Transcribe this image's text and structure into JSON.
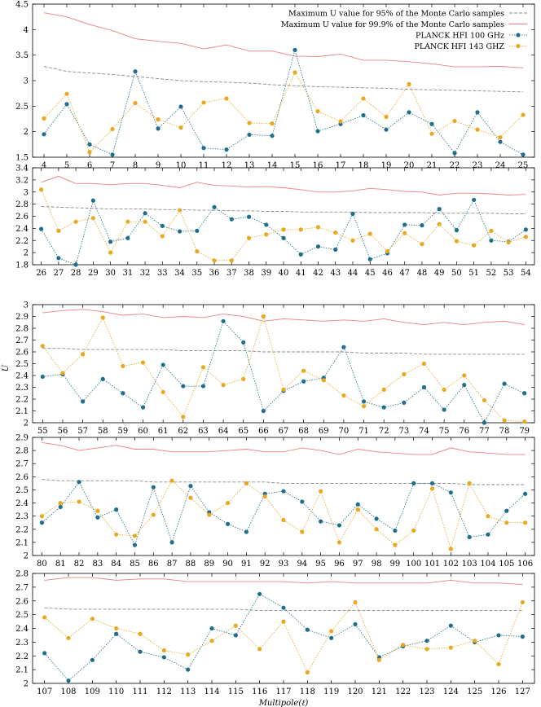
{
  "figure": {
    "ylabel": "U",
    "xlabel": "Multipole(ℓ)",
    "legend": {
      "placement": "top-right of first panel",
      "entries": [
        {
          "label": "Maximum U value for 95% of the Monte Carlo samples",
          "style": "dashed",
          "color": "#8a8a8a"
        },
        {
          "label": "Maximum U value for 99.9% of the Monte Carlo samples",
          "style": "line",
          "color": "#f08080"
        },
        {
          "label": "PLANCK HFI 100 GHz",
          "style": "dotted-marker",
          "color": "#1f6e8c"
        },
        {
          "label": "PLANCK HFI 143 GHZ",
          "style": "dotted-marker",
          "color": "#e9a820"
        }
      ]
    }
  },
  "chart_data": [
    {
      "type": "line",
      "x": [
        4,
        5,
        6,
        7,
        8,
        9,
        10,
        11,
        12,
        13,
        14,
        15,
        16,
        17,
        18,
        19,
        20,
        21,
        22,
        23,
        24,
        25
      ],
      "ylim": [
        1.5,
        4.5
      ],
      "yticks": [
        1.5,
        2,
        2.5,
        3,
        3.5,
        4,
        4.5
      ],
      "series": [
        {
          "name": "Maximum U value for 95% of the Monte Carlo samples",
          "values": [
            3.28,
            3.18,
            3.15,
            3.12,
            3.08,
            3.04,
            3.0,
            2.98,
            2.97,
            2.95,
            2.92,
            2.9,
            2.88,
            2.87,
            2.86,
            2.85,
            2.83,
            2.82,
            2.81,
            2.8,
            2.79,
            2.78
          ]
        },
        {
          "name": "Maximum U value for 99.9% of the Monte Carlo samples",
          "values": [
            4.33,
            4.25,
            4.1,
            3.98,
            3.82,
            3.77,
            3.73,
            3.62,
            3.7,
            3.58,
            3.58,
            3.48,
            3.47,
            3.52,
            3.4,
            3.4,
            3.37,
            3.33,
            3.27,
            3.27,
            3.28,
            3.25
          ]
        },
        {
          "name": "PLANCK HFI 100 GHz",
          "values": [
            1.95,
            2.54,
            1.75,
            1.55,
            3.18,
            2.06,
            2.49,
            1.68,
            1.65,
            1.94,
            1.92,
            3.6,
            2.01,
            2.15,
            2.32,
            2.04,
            2.38,
            2.15,
            1.58,
            2.38,
            1.8,
            1.55
          ]
        },
        {
          "name": "PLANCK HFI 143 GHZ",
          "values": [
            2.26,
            2.74,
            1.6,
            2.05,
            2.56,
            2.24,
            2.08,
            2.57,
            2.65,
            2.17,
            2.16,
            3.16,
            2.4,
            2.2,
            2.65,
            2.29,
            2.93,
            1.96,
            2.21,
            2.04,
            1.89,
            2.33
          ]
        }
      ]
    },
    {
      "type": "line",
      "x": [
        26,
        27,
        28,
        29,
        30,
        31,
        32,
        33,
        34,
        35,
        36,
        37,
        38,
        39,
        40,
        41,
        42,
        43,
        44,
        45,
        46,
        47,
        48,
        49,
        50,
        51,
        52,
        53,
        54
      ],
      "ylim": [
        1.8,
        3.4
      ],
      "yticks": [
        1.8,
        2,
        2.2,
        2.4,
        2.6,
        2.8,
        3,
        3.2,
        3.4
      ],
      "series": [
        {
          "name": "Maximum U value for 95% of the Monte Carlo samples",
          "values": [
            2.76,
            2.75,
            2.74,
            2.73,
            2.72,
            2.72,
            2.72,
            2.71,
            2.71,
            2.7,
            2.7,
            2.69,
            2.69,
            2.68,
            2.68,
            2.67,
            2.67,
            2.67,
            2.67,
            2.66,
            2.66,
            2.66,
            2.66,
            2.65,
            2.65,
            2.65,
            2.65,
            2.64,
            2.64
          ]
        },
        {
          "name": "Maximum U value for 99.9% of the Monte Carlo samples",
          "values": [
            3.16,
            3.26,
            3.14,
            3.14,
            3.12,
            3.14,
            3.14,
            3.11,
            3.07,
            3.16,
            3.11,
            3.1,
            3.08,
            3.09,
            3.07,
            3.04,
            3.0,
            3.0,
            3.02,
            3.06,
            3.04,
            3.01,
            3.0,
            2.95,
            2.98,
            2.98,
            2.97,
            2.95,
            2.96
          ]
        },
        {
          "name": "PLANCK HFI 100 GHz",
          "values": [
            2.39,
            1.91,
            1.8,
            2.86,
            2.18,
            2.24,
            2.65,
            2.44,
            2.35,
            2.36,
            2.75,
            2.55,
            2.59,
            2.46,
            2.24,
            1.97,
            2.1,
            2.05,
            2.64,
            1.89,
            1.99,
            2.46,
            2.45,
            2.72,
            2.37,
            2.87,
            2.2,
            2.18,
            2.38
          ]
        },
        {
          "name": "PLANCK HFI 143 GHZ",
          "values": [
            3.04,
            2.36,
            2.51,
            2.57,
            2.0,
            2.51,
            2.51,
            2.27,
            2.7,
            2.02,
            1.87,
            1.87,
            2.24,
            2.3,
            2.38,
            2.38,
            2.42,
            2.33,
            2.2,
            2.31,
            2.02,
            2.32,
            2.14,
            2.47,
            2.19,
            2.12,
            2.36,
            2.17,
            2.26
          ]
        }
      ]
    },
    {
      "type": "line",
      "x": [
        55,
        56,
        57,
        58,
        59,
        60,
        61,
        62,
        63,
        64,
        65,
        66,
        67,
        68,
        69,
        70,
        71,
        72,
        73,
        74,
        75,
        76,
        77,
        78,
        79
      ],
      "ylim": [
        2,
        3
      ],
      "yticks": [
        2,
        2.1,
        2.2,
        2.3,
        2.4,
        2.5,
        2.6,
        2.7,
        2.8,
        2.9,
        3
      ],
      "series": [
        {
          "name": "Maximum U value for 95% of the Monte Carlo samples",
          "values": [
            2.63,
            2.63,
            2.62,
            2.62,
            2.62,
            2.62,
            2.62,
            2.61,
            2.61,
            2.61,
            2.61,
            2.6,
            2.6,
            2.6,
            2.6,
            2.6,
            2.59,
            2.59,
            2.59,
            2.58,
            2.58,
            2.58,
            2.58,
            2.58,
            2.58
          ]
        },
        {
          "name": "Maximum U value for 99.9% of the Monte Carlo samples",
          "values": [
            2.93,
            2.95,
            2.96,
            2.94,
            2.91,
            2.92,
            2.89,
            2.9,
            2.89,
            2.92,
            2.9,
            2.86,
            2.88,
            2.87,
            2.86,
            2.87,
            2.86,
            2.88,
            2.85,
            2.83,
            2.85,
            2.83,
            2.85,
            2.86,
            2.83
          ]
        },
        {
          "name": "PLANCK HFI 100 GHz",
          "values": [
            2.39,
            2.41,
            2.18,
            2.37,
            2.25,
            2.13,
            2.49,
            2.31,
            2.31,
            2.86,
            2.68,
            2.1,
            2.27,
            2.35,
            2.38,
            2.64,
            2.18,
            2.13,
            2.17,
            2.3,
            2.11,
            2.32,
            2.0,
            2.33,
            2.25
          ]
        },
        {
          "name": "PLANCK HFI 143 GHZ",
          "values": [
            2.65,
            2.42,
            2.58,
            2.89,
            2.48,
            2.51,
            2.26,
            2.05,
            2.47,
            2.32,
            2.37,
            2.9,
            2.28,
            2.44,
            2.36,
            2.23,
            2.14,
            2.28,
            2.41,
            2.5,
            2.28,
            2.4,
            2.19,
            2.02,
            2.01
          ]
        }
      ]
    },
    {
      "type": "line",
      "x": [
        80,
        81,
        82,
        83,
        84,
        85,
        86,
        87,
        88,
        89,
        90,
        91,
        92,
        93,
        94,
        95,
        96,
        97,
        98,
        99,
        100,
        101,
        102,
        103,
        104,
        105,
        106
      ],
      "ylim": [
        2,
        2.9
      ],
      "yticks": [
        2,
        2.1,
        2.2,
        2.3,
        2.4,
        2.5,
        2.6,
        2.7,
        2.8,
        2.9
      ],
      "series": [
        {
          "name": "Maximum U value for 95% of the Monte Carlo samples",
          "values": [
            2.58,
            2.57,
            2.57,
            2.57,
            2.57,
            2.57,
            2.56,
            2.56,
            2.56,
            2.56,
            2.56,
            2.56,
            2.56,
            2.55,
            2.55,
            2.55,
            2.55,
            2.55,
            2.55,
            2.55,
            2.55,
            2.55,
            2.55,
            2.54,
            2.54,
            2.54,
            2.54
          ]
        },
        {
          "name": "Maximum U value for 99.9% of the Monte Carlo samples",
          "values": [
            2.86,
            2.84,
            2.8,
            2.82,
            2.84,
            2.81,
            2.81,
            2.79,
            2.79,
            2.79,
            2.8,
            2.81,
            2.79,
            2.79,
            2.82,
            2.8,
            2.77,
            2.81,
            2.79,
            2.78,
            2.77,
            2.77,
            2.82,
            2.79,
            2.78,
            2.77,
            2.77
          ]
        },
        {
          "name": "PLANCK HFI 100 GHz",
          "values": [
            2.25,
            2.37,
            2.56,
            2.29,
            2.35,
            2.08,
            2.52,
            2.1,
            2.53,
            2.33,
            2.24,
            2.18,
            2.47,
            2.49,
            2.41,
            2.26,
            2.23,
            2.39,
            2.28,
            2.19,
            2.55,
            2.55,
            2.48,
            2.14,
            2.16,
            2.34,
            2.47
          ]
        },
        {
          "name": "PLANCK HFI 143 GHZ",
          "values": [
            2.3,
            2.4,
            2.41,
            2.34,
            2.16,
            2.15,
            2.31,
            2.57,
            2.44,
            2.31,
            2.4,
            2.55,
            2.45,
            2.27,
            2.18,
            2.49,
            2.1,
            2.35,
            2.2,
            2.08,
            2.19,
            2.51,
            2.05,
            2.55,
            2.3,
            2.25,
            2.25
          ]
        }
      ]
    },
    {
      "type": "line",
      "x": [
        107,
        108,
        109,
        110,
        111,
        112,
        113,
        114,
        115,
        116,
        117,
        118,
        119,
        120,
        121,
        122,
        123,
        124,
        125,
        126,
        127
      ],
      "ylim": [
        2,
        2.8
      ],
      "yticks": [
        2,
        2.1,
        2.2,
        2.3,
        2.4,
        2.5,
        2.6,
        2.7,
        2.8
      ],
      "xlabel": "Multipole(ℓ)",
      "series": [
        {
          "name": "Maximum U value for 95% of the Monte Carlo samples",
          "values": [
            2.55,
            2.54,
            2.54,
            2.54,
            2.54,
            2.54,
            2.54,
            2.54,
            2.54,
            2.53,
            2.53,
            2.53,
            2.53,
            2.53,
            2.53,
            2.53,
            2.53,
            2.53,
            2.53,
            2.53,
            2.53
          ]
        },
        {
          "name": "Maximum U value for 99.9% of the Monte Carlo samples",
          "values": [
            2.75,
            2.77,
            2.77,
            2.75,
            2.76,
            2.76,
            2.74,
            2.74,
            2.74,
            2.74,
            2.74,
            2.73,
            2.74,
            2.73,
            2.73,
            2.73,
            2.73,
            2.75,
            2.73,
            2.73,
            2.72
          ]
        },
        {
          "name": "PLANCK HFI 100 GHz",
          "values": [
            2.22,
            2.02,
            2.17,
            2.36,
            2.23,
            2.19,
            2.1,
            2.4,
            2.35,
            2.65,
            2.55,
            2.39,
            2.33,
            2.43,
            2.19,
            2.27,
            2.31,
            2.42,
            2.3,
            2.35,
            2.34
          ]
        },
        {
          "name": "PLANCK HFI 143 GHZ",
          "values": [
            2.48,
            2.33,
            2.47,
            2.4,
            2.36,
            2.24,
            2.21,
            2.31,
            2.42,
            2.25,
            2.45,
            2.08,
            2.38,
            2.59,
            2.17,
            2.28,
            2.25,
            2.26,
            2.31,
            2.14,
            2.59
          ]
        }
      ]
    }
  ]
}
